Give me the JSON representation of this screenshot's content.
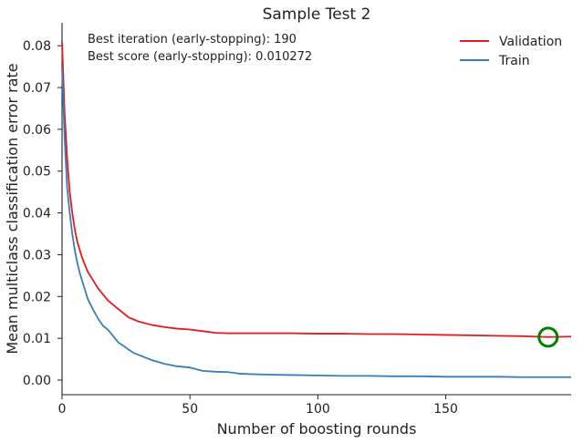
{
  "chart_data": {
    "type": "line",
    "title": "Sample Test 2",
    "xlabel": "Number of boosting rounds",
    "ylabel": "Mean multiclass classification error rate",
    "xlim": [
      0,
      199
    ],
    "ylim": [
      -0.0035,
      0.0855
    ],
    "xticks": [
      0,
      50,
      100,
      150
    ],
    "xtick_labels": [
      "0",
      "50",
      "100",
      "150"
    ],
    "yticks": [
      0.0,
      0.01,
      0.02,
      0.03,
      0.04,
      0.05,
      0.06,
      0.07,
      0.08
    ],
    "ytick_labels": [
      "0.00",
      "0.01",
      "0.02",
      "0.03",
      "0.04",
      "0.05",
      "0.06",
      "0.07",
      "0.08"
    ],
    "grid": false,
    "legend_position": "top-right",
    "series": [
      {
        "name": "Validation",
        "color": "#e41a1c",
        "x": [
          0,
          1,
          2,
          3,
          4,
          5,
          6,
          7,
          8,
          9,
          10,
          12,
          14,
          16,
          18,
          20,
          22,
          24,
          26,
          28,
          30,
          35,
          40,
          45,
          50,
          55,
          60,
          65,
          70,
          80,
          90,
          100,
          110,
          120,
          130,
          140,
          150,
          160,
          170,
          180,
          190,
          199
        ],
        "values": [
          0.081,
          0.064,
          0.053,
          0.045,
          0.04,
          0.036,
          0.033,
          0.031,
          0.029,
          0.0275,
          0.026,
          0.024,
          0.022,
          0.0205,
          0.019,
          0.018,
          0.017,
          0.016,
          0.015,
          0.0145,
          0.014,
          0.0132,
          0.0127,
          0.0123,
          0.0121,
          0.0117,
          0.0113,
          0.0112,
          0.0112,
          0.0112,
          0.0112,
          0.0111,
          0.0111,
          0.011,
          0.011,
          0.0109,
          0.0108,
          0.0107,
          0.0106,
          0.0105,
          0.0103,
          0.0104
        ]
      },
      {
        "name": "Train",
        "color": "#377eb8",
        "x": [
          0,
          1,
          2,
          3,
          4,
          5,
          6,
          7,
          8,
          9,
          10,
          12,
          14,
          16,
          18,
          20,
          22,
          24,
          26,
          28,
          30,
          35,
          40,
          45,
          50,
          55,
          60,
          65,
          70,
          80,
          90,
          100,
          110,
          120,
          130,
          140,
          150,
          160,
          170,
          180,
          190,
          199
        ],
        "values": [
          0.075,
          0.058,
          0.046,
          0.04,
          0.035,
          0.031,
          0.028,
          0.0255,
          0.0235,
          0.0215,
          0.0195,
          0.017,
          0.0148,
          0.013,
          0.012,
          0.0105,
          0.009,
          0.0082,
          0.0073,
          0.0065,
          0.006,
          0.0048,
          0.0039,
          0.0033,
          0.003,
          0.0022,
          0.002,
          0.0019,
          0.0015,
          0.0013,
          0.0012,
          0.0011,
          0.001,
          0.001,
          0.0009,
          0.0009,
          0.0008,
          0.0008,
          0.0008,
          0.0007,
          0.0007,
          0.0007
        ]
      }
    ],
    "marker": {
      "x": 190,
      "y": 0.010272,
      "shape": "open-circle",
      "color": "#008000"
    },
    "annotations": [
      "Best iteration (early-stopping): 190",
      "Best score (early-stopping): 0.010272"
    ]
  }
}
